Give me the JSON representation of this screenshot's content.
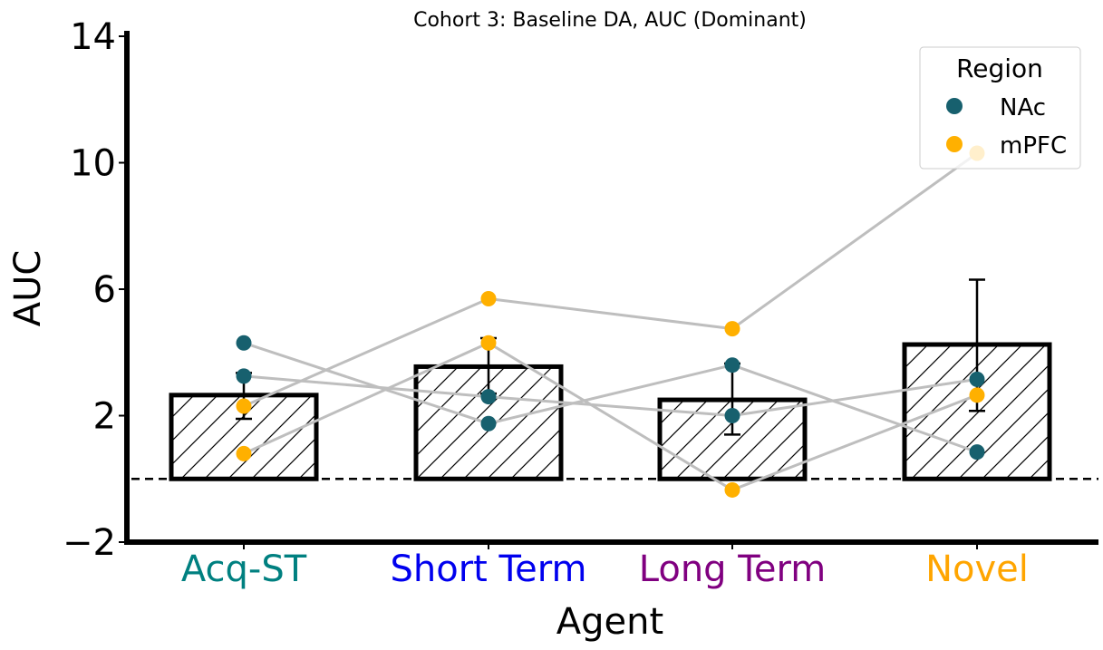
{
  "chart_data": {
    "type": "bar",
    "title": "Cohort 3: Baseline DA, AUC (Dominant)",
    "xlabel": "Agent",
    "ylabel": "AUC",
    "categories": [
      "Acq-ST",
      "Short Term",
      "Long Term",
      "Novel"
    ],
    "category_colors": [
      "#008080",
      "#0000ee",
      "#800080",
      "#ffa500"
    ],
    "bar_values": [
      2.65,
      3.55,
      2.5,
      4.25
    ],
    "error_low": [
      1.9,
      2.7,
      1.4,
      2.15
    ],
    "error_high": [
      3.35,
      4.45,
      3.65,
      6.3
    ],
    "ylim": [
      -2,
      14
    ],
    "yticks": [
      -2,
      2,
      6,
      10,
      14
    ],
    "ytick_labels": [
      "−2",
      "2",
      "6",
      "10",
      "14"
    ],
    "reference_line": 0,
    "legend": {
      "title": "Region",
      "placement": "upper right",
      "entries": [
        {
          "label": "NAc",
          "color": "#17606e"
        },
        {
          "label": "mPFC",
          "color": "#ffb000"
        }
      ]
    },
    "subjects": [
      {
        "region": "NAc",
        "values": [
          4.3,
          1.75,
          3.6,
          0.85
        ]
      },
      {
        "region": "NAc",
        "values": [
          3.25,
          2.6,
          2.0,
          3.15
        ]
      },
      {
        "region": "mPFC",
        "values": [
          2.3,
          5.7,
          4.75,
          10.3
        ]
      },
      {
        "region": "mPFC",
        "values": [
          0.8,
          4.3,
          -0.35,
          2.65
        ]
      }
    ],
    "line_color": "#bebebe",
    "bar_hatch": "diagonal"
  }
}
